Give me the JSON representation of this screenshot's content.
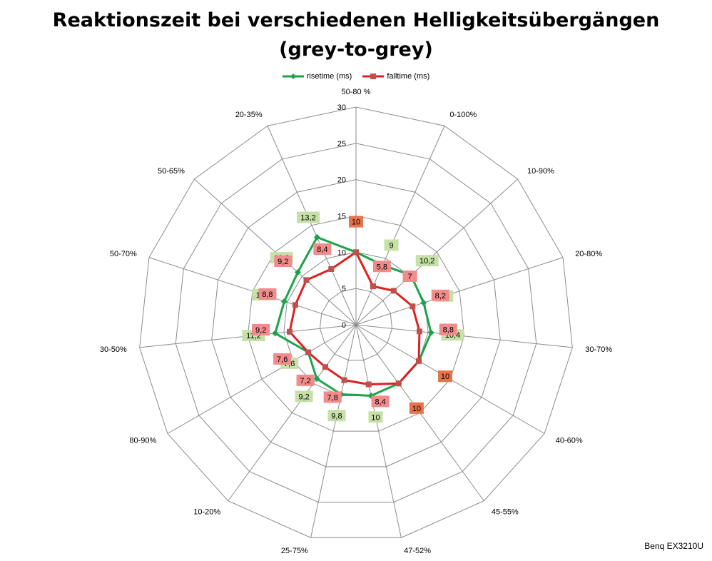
{
  "chart_data": {
    "type": "radar",
    "title_line1": "Reaktionszeit bei verschiedenen Helligkeitsübergängen",
    "title_line2": "(grey-to-grey)",
    "categories": [
      "50-80 %",
      "0-100%",
      "10-90%",
      "20-80%",
      "30-70%",
      "40-60%",
      "45-55%",
      "47-52%",
      "25-75%",
      "10-20%",
      "80-90%",
      "30-50%",
      "50-70%",
      "50-65%",
      "20-35%"
    ],
    "rlim": [
      0,
      30
    ],
    "ticks": [
      0,
      5,
      10,
      15,
      20,
      25,
      30
    ],
    "tick_labels": [
      "0",
      "5",
      "10",
      "15",
      "20",
      "25",
      "30"
    ],
    "grid": true,
    "legend_position": "top",
    "series": [
      {
        "name": "risetime (ms)",
        "color": "#1aa34a",
        "marker": "diamond",
        "label_bg": "#c6e0a8",
        "values": [
          10,
          9,
          10.2,
          9.8,
          10.4,
          10,
          10,
          10,
          9.8,
          9.2,
          7.6,
          11.2,
          10.4,
          10.8,
          13.2
        ],
        "labels": [
          "10",
          "9",
          "10,2",
          "9,8",
          "10,4",
          "10",
          "10",
          "10",
          "9,8",
          "9,2",
          "7,6",
          "11,2",
          "10,4",
          "10,8",
          "13,2"
        ],
        "label_visible": [
          false,
          true,
          true,
          true,
          true,
          false,
          false,
          true,
          true,
          true,
          true,
          true,
          true,
          true,
          true
        ]
      },
      {
        "name": "falltime (ms)",
        "color": "#e02020",
        "marker": "square",
        "label_bg": "#f28b8b",
        "values": [
          10,
          5.8,
          7,
          8.2,
          8.8,
          10,
          10,
          8.4,
          7.8,
          7.2,
          7.6,
          9.2,
          8.8,
          9.2,
          8.4
        ],
        "labels": [
          "10",
          "5,8",
          "7",
          "8,2",
          "8,8",
          "10",
          "10",
          "8,4",
          "7,8",
          "7,2",
          "7,6",
          "9,2",
          "8,8",
          "9,2",
          "8,4"
        ],
        "label_bg_strong": "#e8734a",
        "label_strong": [
          true,
          false,
          false,
          false,
          false,
          true,
          true,
          false,
          false,
          false,
          false,
          false,
          false,
          false,
          false
        ]
      }
    ]
  },
  "footnote": "Benq EX3210U"
}
